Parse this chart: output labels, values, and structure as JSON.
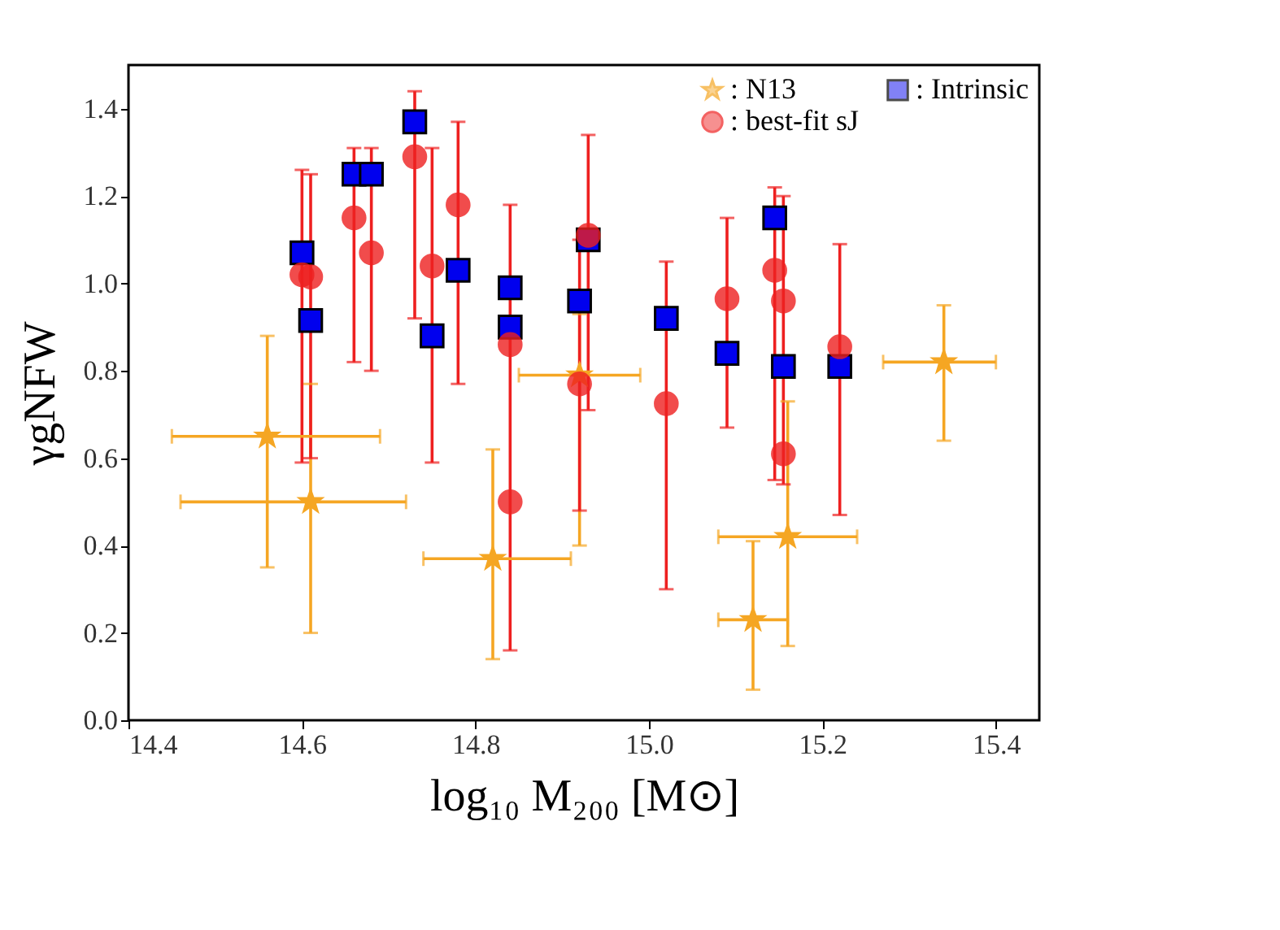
{
  "chart_data": {
    "type": "scatter",
    "xlabel": "log₁₀ M₂₀₀ [M⊙]",
    "ylabel": "γgNFW",
    "xlim": [
      14.4,
      15.45
    ],
    "ylim": [
      0.0,
      1.5
    ],
    "xticks": [
      14.4,
      14.6,
      14.8,
      {
        "value": 15,
        "label": "15.0"
      },
      15.2,
      15.4
    ],
    "yticks": [
      {
        "value": 0,
        "label": "0.0"
      },
      0.2,
      0.4,
      0.6,
      0.8,
      {
        "value": 1,
        "label": "1.0"
      },
      1.2,
      1.4
    ],
    "grid": false,
    "legend": "top right",
    "series": [
      {
        "name": ": N13",
        "color": "#f5a623",
        "marker": "star",
        "x": [
          14.56,
          14.61,
          14.82,
          14.92,
          15.12,
          15.16,
          15.34
        ],
        "values": [
          0.65,
          0.5,
          0.37,
          0.79,
          0.23,
          0.42,
          0.82
        ],
        "errors": [
          [
            0.35,
            0.88
          ],
          [
            0.2,
            0.77
          ],
          [
            0.14,
            0.62
          ],
          [
            0.4,
            0.93
          ],
          [
            0.07,
            0.41
          ],
          [
            0.17,
            0.73
          ],
          [
            0.64,
            0.95
          ]
        ],
        "xerrors": [
          [
            14.45,
            14.69
          ],
          [
            14.46,
            14.72
          ],
          [
            14.74,
            14.91
          ],
          [
            14.85,
            14.99
          ],
          [
            15.08,
            15.16
          ],
          [
            15.08,
            15.24
          ],
          [
            15.27,
            15.4
          ]
        ]
      },
      {
        "name": ": Intrinsic",
        "color": "#0000ee",
        "marker": "square",
        "x": [
          14.6,
          14.61,
          14.66,
          14.68,
          14.73,
          14.75,
          14.78,
          14.84,
          14.84,
          14.92,
          14.93,
          15.02,
          15.09,
          15.145,
          15.155,
          15.22
        ],
        "values": [
          1.07,
          0.915,
          1.25,
          1.25,
          1.37,
          0.88,
          1.03,
          0.99,
          0.9,
          0.96,
          1.1,
          0.92,
          0.84,
          1.15,
          0.81,
          0.81
        ]
      },
      {
        "name": ": best-fit sJ",
        "color": "#ee2020",
        "marker": "circle",
        "x": [
          14.6,
          14.61,
          14.66,
          14.68,
          14.73,
          14.75,
          14.78,
          14.84,
          14.84,
          14.92,
          14.93,
          15.02,
          15.09,
          15.145,
          15.155,
          15.155,
          15.22
        ],
        "values": [
          1.02,
          1.015,
          1.15,
          1.07,
          1.29,
          1.04,
          1.18,
          0.86,
          0.5,
          0.77,
          1.11,
          0.725,
          0.965,
          1.03,
          0.96,
          0.61,
          0.855
        ],
        "errors": [
          [
            0.59,
            1.26
          ],
          [
            0.6,
            1.25
          ],
          [
            0.82,
            1.31
          ],
          [
            0.8,
            1.31
          ],
          [
            0.92,
            1.44
          ],
          [
            0.59,
            1.31
          ],
          [
            0.77,
            1.37
          ],
          [
            0.16,
            1.18
          ],
          null,
          [
            0.48,
            1.1
          ],
          [
            0.71,
            1.34
          ],
          [
            0.3,
            1.05
          ],
          [
            0.67,
            1.15
          ],
          [
            0.55,
            1.22
          ],
          [
            0.54,
            1.2
          ],
          null,
          [
            0.47,
            1.09
          ]
        ]
      }
    ]
  }
}
